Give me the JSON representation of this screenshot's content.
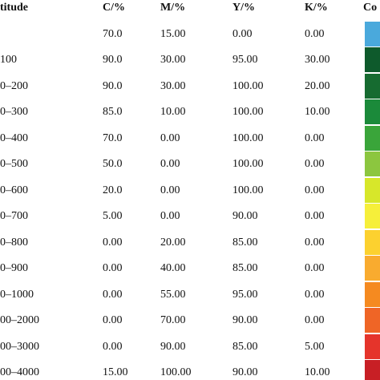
{
  "table": {
    "header": [
      "titude",
      "C/%",
      "M/%",
      "Y/%",
      "K/%",
      "Co"
    ],
    "rows": [
      {
        "cells": [
          "70.0",
          "15.00",
          "0.00",
          "0.00"
        ],
        "color": "#4aa9dc"
      },
      {
        "label": "100",
        "cells": [
          "90.0",
          "30.00",
          "95.00",
          "30.00"
        ],
        "color": "#0e5a2c"
      },
      {
        "label": "0–200",
        "cells": [
          "90.0",
          "30.00",
          "100.00",
          "20.00"
        ],
        "color": "#166b30"
      },
      {
        "label": "0–300",
        "cells": [
          "85.0",
          "10.00",
          "100.00",
          "10.00"
        ],
        "color": "#1b8a3a"
      },
      {
        "label": "0–400",
        "cells": [
          "70.0",
          "0.00",
          "100.00",
          "0.00"
        ],
        "color": "#3aa53a"
      },
      {
        "label": "0–500",
        "cells": [
          "50.0",
          "0.00",
          "100.00",
          "0.00"
        ],
        "color": "#8cc63f"
      },
      {
        "label": "0–600",
        "cells": [
          "20.0",
          "0.00",
          "100.00",
          "0.00"
        ],
        "color": "#d7e72a"
      },
      {
        "label": "0–700",
        "cells": [
          "5.00",
          "0.00",
          "90.00",
          "0.00"
        ],
        "color": "#f6ef3a"
      },
      {
        "label": "0–800",
        "cells": [
          "0.00",
          "20.00",
          "85.00",
          "0.00"
        ],
        "color": "#fcd12f"
      },
      {
        "label": "0–900",
        "cells": [
          "0.00",
          "40.00",
          "85.00",
          "0.00"
        ],
        "color": "#f9ab2f"
      },
      {
        "label": "0–1000",
        "cells": [
          "0.00",
          "55.00",
          "95.00",
          "0.00"
        ],
        "color": "#f58a20"
      },
      {
        "label": "00–2000",
        "cells": [
          "0.00",
          "70.00",
          "90.00",
          "0.00"
        ],
        "color": "#ef6526"
      },
      {
        "label": "00–3000",
        "cells": [
          "0.00",
          "90.00",
          "85.00",
          "5.00"
        ],
        "color": "#e5342b"
      },
      {
        "label": "00–4000",
        "cells": [
          "15.00",
          "100.00",
          "90.00",
          "10.00"
        ],
        "color": "#c81f25"
      }
    ]
  }
}
